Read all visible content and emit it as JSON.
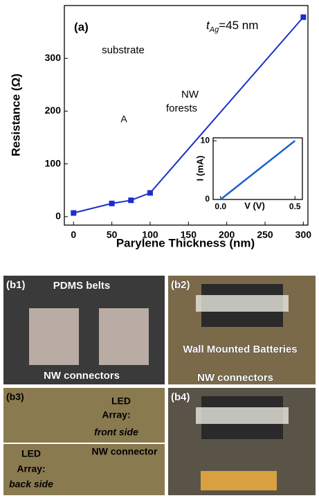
{
  "chart_data": [
    {
      "type": "line",
      "panel_label": "(a)",
      "annotation": {
        "symbol": "t",
        "subscript": "Ag",
        "text": "=45 nm"
      },
      "diagram_labels": {
        "substrate": "substrate",
        "meter": "A",
        "nw": [
          "NW",
          "forests"
        ]
      },
      "xlabel": "Parylene Thickness (nm)",
      "ylabel": "Resistance (Ω)",
      "x": [
        0,
        50,
        75,
        100,
        300
      ],
      "series": [
        {
          "name": "Resistance",
          "color": "#1a2fcc",
          "values": [
            7,
            25,
            31,
            45,
            378
          ]
        }
      ],
      "xlim": [
        -12,
        306
      ],
      "ylim": [
        -16,
        400
      ],
      "xticks": [
        0,
        50,
        100,
        150,
        200,
        250,
        300
      ],
      "yticks": [
        0,
        100,
        200,
        300
      ]
    },
    {
      "type": "line",
      "xlabel": "V (V)",
      "ylabel": "I (mA)",
      "x": [
        0,
        0.5
      ],
      "series": [
        {
          "name": "I-V",
          "color": "#1a5fd0",
          "values": [
            0,
            10
          ]
        }
      ],
      "xlim": [
        -0.05,
        0.55
      ],
      "ylim": [
        0,
        10.5
      ],
      "xticks": [
        {
          "value": 0,
          "label": "0.0"
        },
        0.5
      ],
      "yticks": [
        0,
        10
      ]
    }
  ],
  "photos": [
    {
      "label": "(b1)",
      "texts": [
        "PDMS belts",
        "NW connectors"
      ]
    },
    {
      "label": "(b2)",
      "texts": [
        "Wall Mounted Batteries",
        "NW connectors"
      ]
    },
    {
      "label": "(b3)",
      "texts": [
        "LED",
        "Array:",
        "front side",
        "LED",
        "Array:",
        "back side",
        "NW connector"
      ]
    },
    {
      "label": "(b4)",
      "texts": []
    }
  ]
}
